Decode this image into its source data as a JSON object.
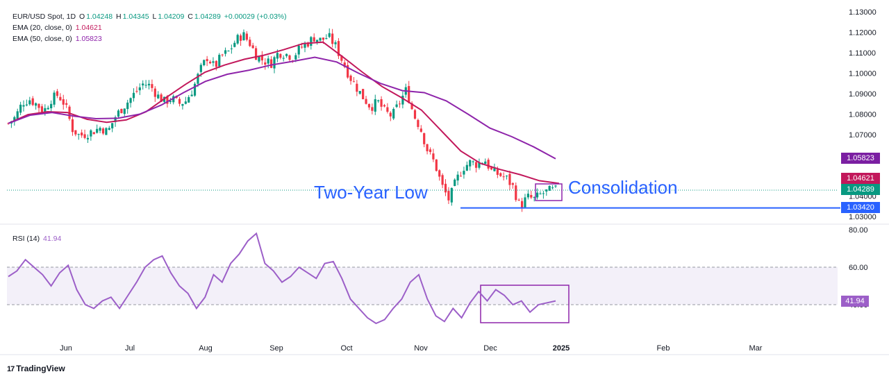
{
  "legend": {
    "symbol": "EUR/USD Spot, 1D",
    "o_label": "O",
    "o": "1.04248",
    "h_label": "H",
    "h": "1.04345",
    "l_label": "L",
    "l": "1.04209",
    "c_label": "C",
    "c": "1.04289",
    "change": "+0.00029 (+0.03%)",
    "ema20_label": "EMA (20, close, 0)",
    "ema20": "1.04621",
    "ema50_label": "EMA (50, close, 0)",
    "ema50": "1.05823",
    "rsi_label": "RSI (14)",
    "rsi": "41.94"
  },
  "price_tags": {
    "ema50": "1.05823",
    "ema20": "1.04621",
    "close": "1.04289",
    "support": "1.03420",
    "rsi": "41.94"
  },
  "annotations": {
    "two_year_low": "Two-Year Low",
    "consolidation": "Consolidation"
  },
  "brand": {
    "logo": "17",
    "name": "TradingView"
  },
  "colors": {
    "up": "#089981",
    "down": "#f23645",
    "ema20": "#c2185b",
    "ema50": "#8e24aa",
    "rsi": "#9c5fc8",
    "support": "#2962ff",
    "box": "#8e24aa",
    "annotation": "#2962ff"
  },
  "chart_data": [
    {
      "type": "candlestick",
      "title": "EUR/USD Spot, 1D",
      "x_ticks": [
        "Jun",
        "Jul",
        "Aug",
        "Sep",
        "Oct",
        "Nov",
        "Dec",
        "2025",
        "Feb",
        "Mar"
      ],
      "y_ticks": [
        "1.13000",
        "1.12000",
        "1.11000",
        "1.10000",
        "1.09000",
        "1.08000",
        "1.07000",
        "1.06000",
        "1.05000",
        "1.04000",
        "1.03000"
      ],
      "ylim": [
        1.029,
        1.13
      ],
      "support_level": 1.0342,
      "series": [
        {
          "name": "EUR/USD Spot",
          "values": [
            1.0755,
            1.0785,
            1.0858,
            1.0872,
            1.0848,
            1.0815,
            1.0872,
            1.0895,
            1.0845,
            1.0728,
            1.0695,
            1.0705,
            1.0718,
            1.0735,
            1.0712,
            1.0785,
            1.083,
            1.0868,
            1.0912,
            1.095,
            1.0938,
            1.089,
            1.086,
            1.0878,
            1.085,
            1.0865,
            1.0925,
            1.1015,
            1.108,
            1.1028,
            1.1085,
            1.1105,
            1.116,
            1.119,
            1.1145,
            1.108,
            1.106,
            1.105,
            1.1102,
            1.1095,
            1.108,
            1.112,
            1.1145,
            1.1175,
            1.116,
            1.118,
            1.1135,
            1.106,
            1.0985,
            1.093,
            1.0878,
            1.0835,
            1.086,
            1.081,
            1.079,
            1.0855,
            1.092,
            1.08,
            1.073,
            1.062,
            1.056,
            1.045,
            1.038,
            1.0475,
            1.054,
            1.0565,
            1.0555,
            1.058,
            1.052,
            1.0505,
            1.049,
            1.0445,
            1.0345,
            1.0395,
            1.0385,
            1.041,
            1.0425,
            1.0429
          ]
        },
        {
          "name": "EMA (20, close, 0)",
          "values": [
            1.0755,
            1.0798,
            1.0812,
            1.0808,
            1.0775,
            1.076,
            1.0772,
            1.0812,
            1.088,
            1.0945,
            1.1005,
            1.104,
            1.1068,
            1.1088,
            1.1115,
            1.1145,
            1.1152,
            1.108,
            1.1005,
            1.0935,
            1.088,
            1.082,
            1.072,
            1.062,
            1.056,
            1.053,
            1.0505,
            1.0475,
            1.0462
          ]
        },
        {
          "name": "EMA (50, close, 0)",
          "values": [
            1.0755,
            1.0795,
            1.0808,
            1.079,
            1.0778,
            1.078,
            1.08,
            1.0845,
            1.0905,
            1.096,
            1.0995,
            1.1015,
            1.104,
            1.1058,
            1.1078,
            1.1055,
            1.1,
            1.095,
            1.0915,
            1.0905,
            1.0865,
            1.08,
            1.0732,
            1.069,
            1.064,
            1.0582
          ]
        }
      ]
    },
    {
      "type": "line",
      "title": "RSI (14)",
      "y_ticks": [
        "80.00",
        "60.00",
        "40.00"
      ],
      "ylim": [
        25,
        80
      ],
      "bands": [
        40,
        60
      ],
      "series": [
        {
          "name": "RSI (14)",
          "values": [
            55,
            58,
            64,
            60,
            56,
            50,
            57,
            61,
            48,
            40,
            38,
            42,
            44,
            38,
            45,
            52,
            60,
            64,
            66,
            57,
            50,
            46,
            38,
            44,
            56,
            52,
            62,
            67,
            74,
            78,
            62,
            58,
            52,
            55,
            60,
            57,
            54,
            62,
            63,
            54,
            43,
            38,
            33,
            30,
            32,
            38,
            43,
            52,
            56,
            43,
            34,
            31,
            38,
            33,
            41,
            47,
            42,
            48,
            45,
            40,
            42,
            36,
            40,
            41,
            42
          ]
        }
      ]
    }
  ]
}
